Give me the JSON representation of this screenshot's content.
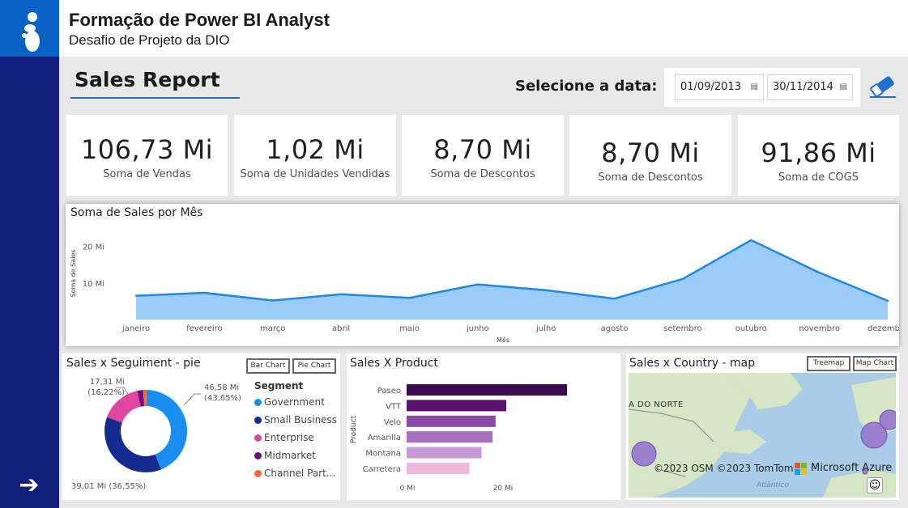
{
  "header": {
    "title": "Formação de Power BI Analyst",
    "subtitle": "Desafio de Projeto da DIO"
  },
  "sidebar": {
    "logo_icon": "dio-logo-icon",
    "nav_icon": "arrow-right-icon"
  },
  "report": {
    "title": "Sales Report",
    "date_label": "Selecione a data:",
    "date_start": "01/09/2013",
    "date_end": "30/11/2014",
    "clear_icon": "eraser-icon"
  },
  "kpis": [
    {
      "value": "106,73 Mi",
      "label": "Soma de  Vendas"
    },
    {
      "value": "1,02 Mi",
      "label": "Soma de Unidades Vendidas"
    },
    {
      "value": "8,70 Mi",
      "label": "Soma de Descontos"
    },
    {
      "value": "8,70 Mi",
      "label": "Soma de Descontos"
    },
    {
      "value": "91,86 Mi",
      "label": "Soma de COGS"
    }
  ],
  "line_panel": {
    "title": "Soma de Sales por Mês"
  },
  "pie_panel": {
    "title": "Sales x Seguiment - pie",
    "bar_button": "Bar Chart",
    "pie_button": "Pie Chart",
    "legend_title": "Segment"
  },
  "bar_panel": {
    "title": "Sales X Product"
  },
  "map_panel": {
    "title": "Sales x Country - map",
    "treemap_button": "Treemap",
    "map_button": "Map Chart",
    "region_label": "A DO NORTE",
    "ocean_label": "Atlântico",
    "attribution": "©2023 OSM  ©2023 TomTom",
    "provider": "Microsoft Azure",
    "smiley_icon": "feedback-smiley-icon",
    "colors": {
      "bubble": "#9b80cf",
      "land": "#d6e6c4",
      "water": "#a9cde6"
    }
  },
  "chart_data": [
    {
      "type": "area",
      "title": "Soma de Sales por Mês",
      "xlabel": "Mês",
      "ylabel": "Soma de Sales",
      "categories": [
        "janeiro",
        "fevereiro",
        "março",
        "abril",
        "maio",
        "junho",
        "julho",
        "agosto",
        "setembro",
        "outubro",
        "novembro",
        "dezembro"
      ],
      "values": [
        6.5,
        7.3,
        5.2,
        6.9,
        5.9,
        9.6,
        8.0,
        5.7,
        11.1,
        21.7,
        12.8,
        5.1
      ],
      "yticks": [
        "10 Mi",
        "20 Mi"
      ],
      "ylim": [
        0,
        25
      ],
      "grid": false,
      "colors": {
        "line": "#1f87e8",
        "fill": "#90c6f7"
      }
    },
    {
      "type": "pie",
      "title": "Sales x Seguiment - pie",
      "donut": true,
      "slices": [
        {
          "name": "Government",
          "value": 46.58,
          "label": "46,58 Mi\n(43,65%)",
          "color": "#1a8df0"
        },
        {
          "name": "Small Business",
          "value": 39.01,
          "label": "39,01 Mi (36,55%)",
          "color": "#152a8e"
        },
        {
          "name": "Enterprise",
          "value": 17.31,
          "label": "17,31 Mi\n(16,22%)",
          "color": "#e0469f"
        },
        {
          "name": "Midmarket",
          "value": 2.38,
          "label": "",
          "color": "#660f7d"
        },
        {
          "name": "Channel Part...",
          "value": 1.45,
          "label": "",
          "color": "#f26b3a"
        }
      ],
      "legend": "right"
    },
    {
      "type": "bar",
      "orientation": "horizontal",
      "title": "Sales X Product",
      "ylabel": "Product",
      "categories": [
        "Paseo",
        "VTT",
        "Velo",
        "Amarilla",
        "Montana",
        "Carretera"
      ],
      "values": [
        33.0,
        20.5,
        18.3,
        17.7,
        15.4,
        12.9
      ],
      "xticks": [
        "0 Mi",
        "20 Mi"
      ],
      "xlim": [
        0,
        40
      ],
      "colors": [
        "#3b0a4f",
        "#5a1170",
        "#8a4aa5",
        "#a870bf",
        "#c79ad6",
        "#efb8dc"
      ]
    }
  ]
}
